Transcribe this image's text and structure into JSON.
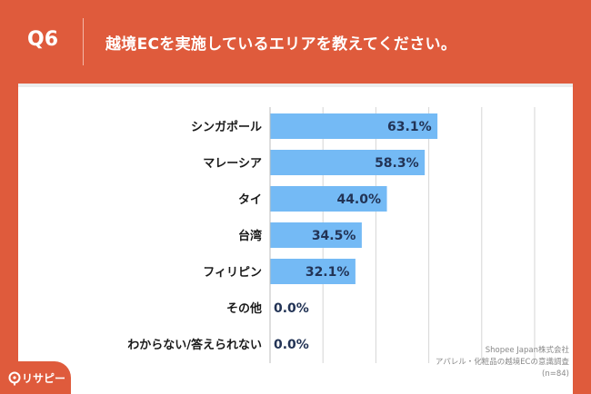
{
  "header": {
    "question_number": "Q6",
    "question_text": "越境ECを実施しているエリアを教えてください。"
  },
  "chart_data": {
    "type": "bar",
    "orientation": "horizontal",
    "categories": [
      "シンガポール",
      "マレーシア",
      "タイ",
      "台湾",
      "フィリピン",
      "その他",
      "わからない/答えられない"
    ],
    "values": [
      63.1,
      58.3,
      44.0,
      34.5,
      32.1,
      0.0,
      0.0
    ],
    "value_labels": [
      "63.1%",
      "58.3%",
      "44.0%",
      "34.5%",
      "32.1%",
      "0.0%",
      "0.0%"
    ],
    "unit": "%",
    "xlim": [
      0,
      100
    ],
    "grid": true,
    "bar_color": "#74baf5",
    "title": "",
    "xlabel": "",
    "ylabel": ""
  },
  "source": {
    "line1": "Shopee Japan株式会社",
    "line2": "アパレル・化粧品の越境ECの意識調査",
    "line3": "(n=84)"
  },
  "logo": {
    "text": "リサピー"
  },
  "colors": {
    "background": "#df5b3c",
    "panel": "#ffffff",
    "bar": "#74baf5"
  }
}
